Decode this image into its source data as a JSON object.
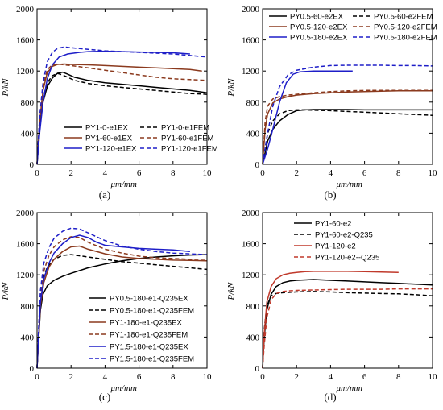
{
  "chart_data": [
    {
      "type": "line",
      "caption": "(a)",
      "xlabel": "μm/mm",
      "ylabel": "P/kN",
      "xlim": [
        0,
        10
      ],
      "ylim": [
        0,
        2000
      ],
      "xticks": [
        0,
        2,
        4,
        6,
        8,
        10
      ],
      "yticks": [
        0,
        400,
        800,
        1200,
        1600,
        2000
      ],
      "legend_position": "bottom-left",
      "series": [
        {
          "name": "PY1-0-e1EX",
          "color": "#000000",
          "dash": "solid",
          "x": [
            0,
            0.15,
            0.35,
            0.6,
            0.9,
            1.2,
            1.5,
            1.8,
            2.2,
            3,
            4,
            5,
            6,
            7,
            8,
            9,
            10
          ],
          "y": [
            0,
            450,
            800,
            1000,
            1110,
            1170,
            1185,
            1160,
            1120,
            1080,
            1050,
            1030,
            1010,
            990,
            970,
            950,
            920
          ]
        },
        {
          "name": "PY1-0-e1FEM",
          "color": "#000000",
          "dash": "dashed",
          "x": [
            0,
            0.15,
            0.35,
            0.6,
            0.9,
            1.2,
            1.5,
            1.8,
            2.2,
            3,
            4,
            5,
            6,
            7,
            8,
            9,
            10
          ],
          "y": [
            0,
            500,
            850,
            1050,
            1140,
            1170,
            1150,
            1120,
            1080,
            1040,
            1010,
            990,
            970,
            950,
            930,
            910,
            900
          ]
        },
        {
          "name": "PY1-60-e1EX",
          "color": "#8B3A1E",
          "dash": "solid",
          "x": [
            0,
            0.15,
            0.35,
            0.6,
            0.9,
            1.2,
            1.6,
            2,
            3,
            4,
            5,
            6,
            7,
            8,
            9,
            9.7
          ],
          "y": [
            0,
            550,
            950,
            1180,
            1260,
            1285,
            1290,
            1285,
            1280,
            1270,
            1260,
            1250,
            1240,
            1230,
            1220,
            1200
          ]
        },
        {
          "name": "PY1-60-e1FEM",
          "color": "#8B3A1E",
          "dash": "dashed",
          "x": [
            0,
            0.15,
            0.35,
            0.6,
            0.9,
            1.2,
            1.6,
            2,
            3,
            4,
            5,
            6,
            7,
            8,
            9,
            10
          ],
          "y": [
            0,
            600,
            1000,
            1220,
            1280,
            1290,
            1280,
            1270,
            1240,
            1210,
            1180,
            1150,
            1120,
            1100,
            1090,
            1080
          ]
        },
        {
          "name": "PY1-120-e1EX",
          "color": "#1E1EC8",
          "dash": "solid",
          "x": [
            0,
            0.15,
            0.35,
            0.6,
            0.9,
            1.3,
            1.8,
            2.5,
            3,
            4,
            5,
            6,
            7,
            8,
            9
          ],
          "y": [
            0,
            400,
            800,
            1100,
            1280,
            1380,
            1420,
            1440,
            1450,
            1455,
            1450,
            1445,
            1440,
            1435,
            1420
          ]
        },
        {
          "name": "PY1-120-e1FEM",
          "color": "#1E1EC8",
          "dash": "dashed",
          "x": [
            0,
            0.15,
            0.35,
            0.6,
            0.9,
            1.2,
            1.6,
            2,
            3,
            4,
            5,
            6,
            7,
            8,
            9,
            10
          ],
          "y": [
            0,
            600,
            1050,
            1320,
            1440,
            1490,
            1510,
            1500,
            1480,
            1460,
            1450,
            1440,
            1430,
            1420,
            1400,
            1380
          ]
        }
      ]
    },
    {
      "type": "line",
      "caption": "(b)",
      "xlabel": "μm/mm",
      "ylabel": "P/kN",
      "xlim": [
        0,
        10
      ],
      "ylim": [
        0,
        2000
      ],
      "xticks": [
        0,
        2,
        4,
        6,
        8,
        10
      ],
      "yticks": [
        0,
        400,
        800,
        1200,
        1600,
        2000
      ],
      "legend_position": "top",
      "series": [
        {
          "name": "PY0.5-60-e2EX",
          "color": "#000000",
          "dash": "solid",
          "x": [
            0,
            0.3,
            0.6,
            1,
            1.5,
            2,
            2.5,
            3,
            4,
            5,
            6,
            7,
            8,
            9,
            10
          ],
          "y": [
            0,
            300,
            450,
            560,
            640,
            690,
            700,
            705,
            705,
            705,
            700,
            700,
            700,
            700,
            700
          ]
        },
        {
          "name": "PY0.5-60-e2FEM",
          "color": "#000000",
          "dash": "dashed",
          "x": [
            0,
            0.3,
            0.6,
            1,
            1.5,
            2,
            2.5,
            3,
            4,
            5,
            6,
            7,
            8,
            9,
            10
          ],
          "y": [
            0,
            400,
            560,
            650,
            690,
            700,
            700,
            695,
            690,
            680,
            670,
            660,
            650,
            640,
            630
          ]
        },
        {
          "name": "PY0.5-120-e2EX",
          "color": "#8B3A1E",
          "dash": "solid",
          "x": [
            0,
            0.15,
            0.3,
            0.6,
            1,
            1.5,
            2,
            3,
            4,
            5,
            6,
            7,
            8,
            9,
            10
          ],
          "y": [
            0,
            450,
            650,
            790,
            840,
            870,
            890,
            910,
            920,
            930,
            935,
            940,
            945,
            945,
            945
          ]
        },
        {
          "name": "PY0.5-120-e2FEM",
          "color": "#8B3A1E",
          "dash": "dashed",
          "x": [
            0,
            0.15,
            0.3,
            0.6,
            1,
            1.5,
            2,
            3,
            4,
            5,
            6,
            7,
            8,
            9,
            10
          ],
          "y": [
            0,
            550,
            750,
            840,
            870,
            890,
            900,
            920,
            935,
            945,
            950,
            950,
            950,
            950,
            950
          ]
        },
        {
          "name": "PY0.5-180-e2EX",
          "color": "#1E1EC8",
          "dash": "solid",
          "x": [
            0,
            0.3,
            0.6,
            1,
            1.4,
            1.8,
            2.2,
            3,
            4,
            5,
            5.3
          ],
          "y": [
            0,
            200,
            450,
            800,
            1050,
            1160,
            1190,
            1200,
            1200,
            1200,
            1200
          ]
        },
        {
          "name": "PY0.5-180-e2FEM",
          "color": "#1E1EC8",
          "dash": "dashed",
          "x": [
            0,
            0.3,
            0.6,
            1,
            1.5,
            2,
            3,
            4,
            5,
            6,
            7,
            8,
            9,
            10
          ],
          "y": [
            0,
            400,
            750,
            1000,
            1150,
            1210,
            1250,
            1270,
            1275,
            1275,
            1275,
            1270,
            1270,
            1265
          ]
        }
      ]
    },
    {
      "type": "line",
      "caption": "(c)",
      "xlabel": "μm/mm",
      "ylabel": "P/kN",
      "xlim": [
        0,
        10
      ],
      "ylim": [
        0,
        2000
      ],
      "xticks": [
        0,
        2,
        4,
        6,
        8,
        10
      ],
      "yticks": [
        0,
        400,
        800,
        1200,
        1600,
        2000
      ],
      "legend_position": "bottom-right",
      "series": [
        {
          "name": "PY0.5-180-e1-Q235EX",
          "color": "#000000",
          "dash": "solid",
          "x": [
            0,
            0.1,
            0.2,
            0.35,
            0.6,
            1,
            1.5,
            2,
            3,
            4,
            5,
            6,
            7,
            8,
            9,
            10
          ],
          "y": [
            0,
            400,
            750,
            950,
            1060,
            1130,
            1180,
            1220,
            1290,
            1340,
            1380,
            1410,
            1430,
            1445,
            1455,
            1460
          ]
        },
        {
          "name": "PY0.5-180-e1-Q235FEM",
          "color": "#000000",
          "dash": "dashed",
          "x": [
            0,
            0.1,
            0.2,
            0.35,
            0.6,
            1,
            1.5,
            2,
            3,
            4,
            5,
            6,
            7,
            8,
            9,
            10
          ],
          "y": [
            0,
            500,
            900,
            1150,
            1300,
            1400,
            1450,
            1460,
            1430,
            1400,
            1370,
            1350,
            1330,
            1310,
            1290,
            1270
          ]
        },
        {
          "name": "PY1-180-e1-Q235EX",
          "color": "#8B3A1E",
          "dash": "solid",
          "x": [
            0,
            0.1,
            0.2,
            0.4,
            0.7,
            1,
            1.5,
            2,
            2.5,
            3,
            4,
            5,
            6,
            7,
            8,
            9,
            10
          ],
          "y": [
            0,
            400,
            800,
            1100,
            1300,
            1400,
            1500,
            1560,
            1570,
            1530,
            1470,
            1430,
            1410,
            1400,
            1390,
            1385,
            1380
          ]
        },
        {
          "name": "PY1-180-e1-Q235FEM",
          "color": "#8B3A1E",
          "dash": "dashed",
          "x": [
            0,
            0.1,
            0.2,
            0.4,
            0.7,
            1,
            1.5,
            2,
            2.5,
            3,
            4,
            5,
            6,
            7,
            8,
            9,
            10
          ],
          "y": [
            0,
            500,
            950,
            1250,
            1450,
            1560,
            1650,
            1690,
            1680,
            1620,
            1530,
            1480,
            1440,
            1420,
            1410,
            1400,
            1400
          ]
        },
        {
          "name": "PY1.5-180-e1-Q235EX",
          "color": "#1E1EC8",
          "dash": "solid",
          "x": [
            0,
            0.1,
            0.2,
            0.4,
            0.7,
            1,
            1.5,
            2,
            2.5,
            3,
            3.5,
            4,
            5,
            6,
            7,
            8,
            9
          ],
          "y": [
            0,
            450,
            850,
            1150,
            1350,
            1480,
            1600,
            1680,
            1710,
            1680,
            1620,
            1580,
            1560,
            1540,
            1530,
            1520,
            1500
          ]
        },
        {
          "name": "PY1.5-180-e1-Q235FEM",
          "color": "#1E1EC8",
          "dash": "dashed",
          "x": [
            0,
            0.1,
            0.2,
            0.4,
            0.7,
            1,
            1.5,
            2,
            2.5,
            3,
            4,
            5,
            6,
            7,
            8,
            9,
            10
          ],
          "y": [
            0,
            550,
            1000,
            1350,
            1550,
            1670,
            1760,
            1800,
            1790,
            1740,
            1640,
            1570,
            1530,
            1500,
            1480,
            1470,
            1460
          ]
        }
      ]
    },
    {
      "type": "line",
      "caption": "(d)",
      "xlabel": "μm/mm",
      "ylabel": "P/kN",
      "xlim": [
        0,
        10
      ],
      "ylim": [
        0,
        2000
      ],
      "xticks": [
        0,
        2,
        4,
        6,
        8,
        10
      ],
      "yticks": [
        0,
        400,
        800,
        1200,
        1600,
        2000
      ],
      "legend_position": "top",
      "series": [
        {
          "name": "PY1-60-e2",
          "color": "#000000",
          "dash": "solid",
          "x": [
            0,
            0.1,
            0.25,
            0.5,
            0.8,
            1.2,
            1.6,
            2,
            3,
            4,
            5,
            6,
            7,
            8,
            9,
            10
          ],
          "y": [
            0,
            400,
            750,
            950,
            1050,
            1100,
            1120,
            1130,
            1140,
            1130,
            1120,
            1110,
            1100,
            1090,
            1080,
            1070
          ]
        },
        {
          "name": "PY1-60-e2-Q235",
          "color": "#000000",
          "dash": "dashed",
          "x": [
            0,
            0.1,
            0.25,
            0.5,
            0.8,
            1.2,
            1.6,
            2,
            3,
            4,
            5,
            6,
            7,
            8,
            9,
            10
          ],
          "y": [
            0,
            500,
            800,
            930,
            960,
            970,
            975,
            980,
            985,
            980,
            970,
            965,
            960,
            955,
            945,
            930
          ]
        },
        {
          "name": "PY1-120-e2",
          "color": "#C0392B",
          "dash": "solid",
          "x": [
            0,
            0.1,
            0.25,
            0.5,
            0.8,
            1.2,
            1.6,
            2,
            2.5,
            3,
            4,
            5,
            6,
            7,
            8
          ],
          "y": [
            0,
            450,
            850,
            1050,
            1150,
            1200,
            1220,
            1230,
            1240,
            1245,
            1245,
            1245,
            1240,
            1235,
            1230
          ]
        },
        {
          "name": "PY1-120-e2--Q235",
          "color": "#C0392B",
          "dash": "dashed",
          "x": [
            0,
            0.1,
            0.25,
            0.5,
            0.8,
            1.2,
            1.6,
            2,
            3,
            4,
            5,
            6,
            7,
            8,
            9,
            10
          ],
          "y": [
            0,
            300,
            650,
            880,
            960,
            985,
            995,
            1000,
            1005,
            1010,
            1015,
            1015,
            1015,
            1020,
            1020,
            1020
          ]
        }
      ]
    }
  ]
}
